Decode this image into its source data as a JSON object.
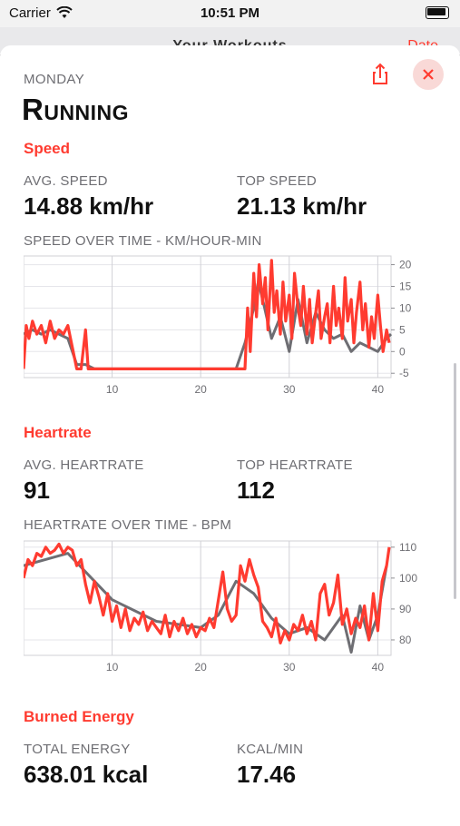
{
  "status": {
    "carrier": "Carrier",
    "time": "10:51 PM"
  },
  "behind": {
    "title": "Your Workouts",
    "action": "Date"
  },
  "header": {
    "day": "MONDAY",
    "title": "Running"
  },
  "speed": {
    "section": "Speed",
    "avg_label": "AVG. SPEED",
    "avg_value": "14.88 km/hr",
    "top_label": "TOP SPEED",
    "top_value": "21.13 km/hr",
    "chart_title": "SPEED OVER TIME  -  KM/HOUR-MIN"
  },
  "heart": {
    "section": "Heartrate",
    "avg_label": "AVG. HEARTRATE",
    "avg_value": "91",
    "top_label": "TOP HEARTRATE",
    "top_value": "112",
    "chart_title": "HEARTRATE OVER TIME  -  BPM"
  },
  "energy": {
    "section": "Burned Energy",
    "total_label": "TOTAL ENERGY",
    "total_value": "638.01 kcal",
    "rate_label": "KCAL/MIN",
    "rate_value": "17.46"
  },
  "colors": {
    "accent": "#ff3b30",
    "secondary_line": "#6e6e73"
  },
  "chart_data": [
    {
      "type": "line",
      "title": "SPEED OVER TIME  -  KM/HOUR-MIN",
      "xlim": [
        0,
        41.5
      ],
      "ylim": [
        -6,
        22
      ],
      "x_ticks": [
        10,
        20,
        30,
        40
      ],
      "y_ticks": [
        -5,
        0,
        5,
        10,
        15,
        20
      ],
      "series": [
        {
          "color": "#6e6e73",
          "x": [
            0,
            1,
            2,
            3,
            4,
            5,
            6,
            7,
            8,
            10,
            20,
            24,
            25,
            26,
            26.5,
            27,
            28,
            29,
            30,
            31,
            32,
            33,
            34,
            35,
            36,
            37,
            38,
            39,
            40,
            41,
            41.5
          ],
          "y": [
            4,
            5,
            4,
            5,
            4,
            3,
            -3,
            -3,
            -4,
            -4,
            -4,
            -4,
            2,
            10,
            16,
            12,
            3,
            8,
            0,
            12,
            2,
            9,
            5,
            3,
            4,
            0,
            2,
            1,
            0,
            3,
            4
          ]
        },
        {
          "color": "#ff3b30",
          "x": [
            0,
            0.3,
            0.6,
            1,
            1.5,
            2,
            2.5,
            3,
            3.5,
            4,
            4.5,
            5,
            5.5,
            6,
            6.5,
            7,
            7.3,
            7.6,
            8,
            10,
            20,
            24,
            24.5,
            25,
            25.3,
            25.6,
            26,
            26.3,
            26.6,
            27,
            27.3,
            27.6,
            28,
            28.3,
            28.6,
            29,
            29.3,
            29.6,
            30,
            30.3,
            30.6,
            31,
            31.3,
            31.6,
            32,
            32.3,
            32.6,
            33,
            33.3,
            33.6,
            34,
            34.3,
            34.6,
            35,
            35.3,
            35.6,
            36,
            36.3,
            36.6,
            37,
            37.3,
            37.6,
            38,
            38.3,
            38.6,
            39,
            39.3,
            39.6,
            40,
            40.3,
            40.6,
            41,
            41.3
          ],
          "y": [
            -4,
            6,
            3,
            7,
            4,
            6,
            2,
            7,
            3,
            5,
            4,
            6,
            1,
            -4,
            -4,
            5,
            -4,
            -4,
            -4,
            -4,
            -4,
            -4,
            -4,
            -4,
            10,
            0,
            18,
            8,
            20,
            11,
            17,
            5,
            21,
            9,
            14,
            4,
            16,
            7,
            13,
            3,
            18,
            10,
            6,
            15,
            4,
            12,
            2,
            9,
            14,
            3,
            8,
            11,
            2,
            15,
            6,
            10,
            3,
            17,
            7,
            12,
            2,
            9,
            16,
            5,
            11,
            1,
            8,
            3,
            13,
            6,
            0,
            5,
            2
          ]
        }
      ]
    },
    {
      "type": "line",
      "title": "HEARTRATE OVER TIME  -  BPM",
      "xlim": [
        0,
        41.5
      ],
      "ylim": [
        75,
        112
      ],
      "x_ticks": [
        10,
        20,
        30,
        40
      ],
      "y_ticks": [
        80,
        90,
        100,
        110
      ],
      "series": [
        {
          "color": "#6e6e73",
          "x": [
            0,
            5,
            10,
            15,
            20,
            22,
            24,
            26,
            28,
            30,
            32,
            34,
            36,
            37,
            38,
            39,
            40,
            41
          ],
          "y": [
            104,
            108,
            93,
            86,
            84,
            88,
            99,
            95,
            87,
            82,
            84,
            80,
            88,
            76,
            91,
            80,
            88,
            104
          ]
        },
        {
          "color": "#ff3b30",
          "x": [
            0,
            0.5,
            1,
            1.5,
            2,
            2.5,
            3,
            3.5,
            4,
            4.5,
            5,
            5.5,
            6,
            6.5,
            7,
            7.5,
            8,
            8.5,
            9,
            9.5,
            10,
            10.5,
            11,
            11.5,
            12,
            12.5,
            13,
            13.5,
            14,
            14.5,
            15,
            15.5,
            16,
            16.5,
            17,
            17.5,
            18,
            18.5,
            19,
            19.5,
            20,
            20.5,
            21,
            21.5,
            22,
            22.5,
            23,
            23.5,
            24,
            24.5,
            25,
            25.5,
            26,
            26.5,
            27,
            27.5,
            28,
            28.5,
            29,
            29.5,
            30,
            30.5,
            31,
            31.5,
            32,
            32.5,
            33,
            33.5,
            34,
            34.5,
            35,
            35.5,
            36,
            36.5,
            37,
            37.5,
            38,
            38.5,
            39,
            39.5,
            40,
            40.5,
            41,
            41.3
          ],
          "y": [
            100,
            106,
            104,
            108,
            107,
            110,
            108,
            109,
            111,
            108,
            110,
            109,
            104,
            106,
            98,
            92,
            99,
            94,
            88,
            95,
            86,
            91,
            84,
            90,
            83,
            87,
            85,
            89,
            83,
            86,
            84,
            82,
            88,
            81,
            86,
            83,
            87,
            82,
            85,
            81,
            84,
            83,
            87,
            84,
            93,
            102,
            90,
            86,
            88,
            104,
            99,
            106,
            101,
            97,
            86,
            84,
            81,
            87,
            79,
            83,
            80,
            85,
            83,
            88,
            82,
            86,
            80,
            95,
            98,
            88,
            92,
            101,
            85,
            90,
            82,
            87,
            84,
            91,
            80,
            95,
            83,
            99,
            104,
            110
          ]
        }
      ]
    }
  ]
}
